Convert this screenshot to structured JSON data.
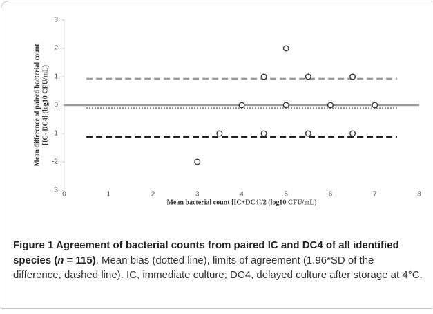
{
  "chart_data": {
    "type": "scatter",
    "xlabel": "Mean bacterial count [IC+DC4]/2 (log10 CFU/mL)",
    "ylabel": [
      "Mean difference of paired bacterial count",
      "[IC- DC4] (log10 CFU/mL)"
    ],
    "series": [
      {
        "color": "#333333",
        "x": [
          3,
          3.5,
          4,
          4.5,
          4.5,
          5,
          5,
          5.5,
          5.5,
          6,
          6.5,
          6.5,
          7
        ],
        "values": [
          -2,
          -1,
          0,
          1,
          -1,
          2,
          0,
          1,
          -1,
          0,
          1,
          -1,
          0
        ]
      }
    ],
    "reference_lines": [
      {
        "value": 0,
        "style": "solid",
        "color": "#999999",
        "span": [
          0,
          8
        ]
      },
      {
        "value": 0.93,
        "style": "dashed",
        "color": "#9a9a9a",
        "span": [
          0.5,
          7.5
        ]
      },
      {
        "value": -0.1,
        "style": "dotted",
        "color": "#777777",
        "span": [
          0.5,
          7.5
        ]
      },
      {
        "value": -1.12,
        "style": "dashed",
        "color": "#222222",
        "span": [
          0.5,
          7.5
        ]
      }
    ],
    "xlim": [
      0,
      8
    ],
    "xticks": [
      0,
      1,
      2,
      3,
      4,
      5,
      6,
      7,
      8
    ],
    "ylim": [
      -3,
      3
    ],
    "yticks": [
      -3,
      -2,
      -1,
      0,
      1,
      2,
      3
    ]
  },
  "caption": {
    "label": "Figure 1",
    "title": "Agreement of bacterial counts from paired IC and DC4 of all identified species (",
    "title_var": "n",
    "title_end": " = 115)",
    "body": ". Mean bias (dotted line), limits of agreement (1.96*SD of the difference, dashed line). IC, immediate culture; DC4, delayed culture after storage at 4°C."
  }
}
